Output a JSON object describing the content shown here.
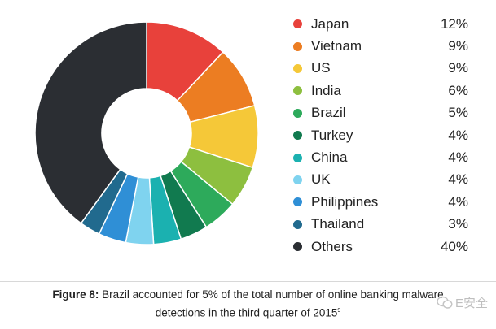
{
  "chart_data": {
    "type": "pie",
    "donut": true,
    "title": "",
    "legend_position": "right",
    "slices": [
      {
        "label": "Japan",
        "value": 12,
        "display": "12%",
        "color": "#e8413b"
      },
      {
        "label": "Vietnam",
        "value": 9,
        "display": "9%",
        "color": "#ec7d22"
      },
      {
        "label": "US",
        "value": 9,
        "display": "9%",
        "color": "#f5c838"
      },
      {
        "label": "India",
        "value": 6,
        "display": "6%",
        "color": "#8dbf3f"
      },
      {
        "label": "Brazil",
        "value": 5,
        "display": "5%",
        "color": "#2daa5b"
      },
      {
        "label": "Turkey",
        "value": 4,
        "display": "4%",
        "color": "#117a4f"
      },
      {
        "label": "China",
        "value": 4,
        "display": "4%",
        "color": "#1bb1b0"
      },
      {
        "label": "UK",
        "value": 4,
        "display": "4%",
        "color": "#7fd3ef"
      },
      {
        "label": "Philippines",
        "value": 4,
        "display": "4%",
        "color": "#2f8fd6"
      },
      {
        "label": "Thailand",
        "value": 3,
        "display": "3%",
        "color": "#216a8e"
      },
      {
        "label": "Others",
        "value": 40,
        "display": "40%",
        "color": "#2b2e33"
      }
    ]
  },
  "caption": {
    "figure_label": "Figure 8:",
    "line1": " Brazil accounted for 5% of the total number of online banking malware",
    "line2": "detections in the third quarter of 2015",
    "footnote_mark": "9"
  },
  "watermark": {
    "icon": "wechat-icon",
    "text": "E安全"
  }
}
